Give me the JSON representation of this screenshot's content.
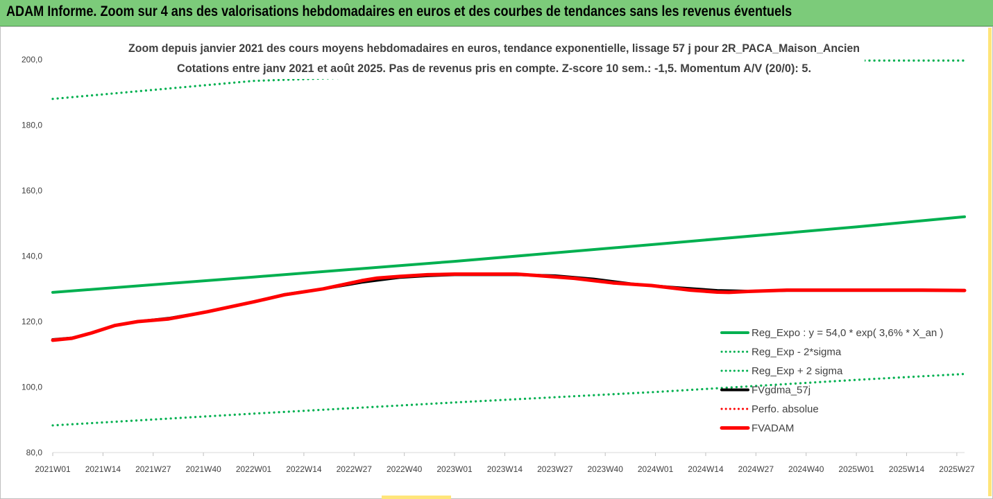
{
  "header": {
    "banner": "ADAM Informe. Zoom sur 4 ans des valorisations hebdomadaires en euros et des courbes de tendances sans les revenus éventuels"
  },
  "chart_data": {
    "type": "line",
    "title": "Zoom depuis janvier 2021 des cours moyens hebdomadaires en euros, tendance exponentielle, lissage 57 j pour 2R_PACA_Maison_Ancien",
    "subtitle": "Cotations entre janv 2021 et août 2025.  Pas de revenus pris en compte. Z-score 10 sem.: -1,5. Momentum A/V (20/0): 5.",
    "xlabel": "",
    "ylabel": "",
    "ylim": [
      80,
      200
    ],
    "yticks": [
      "80,0",
      "100,0",
      "120,0",
      "140,0",
      "160,0",
      "180,0",
      "200,0"
    ],
    "xticks": [
      "2021W01",
      "2021W14",
      "2021W27",
      "2021W40",
      "2022W01",
      "2022W14",
      "2022W27",
      "2022W40",
      "2023W01",
      "2023W14",
      "2023W27",
      "2023W40",
      "2024W01",
      "2024W14",
      "2024W27",
      "2024W40",
      "2025W01",
      "2025W14",
      "2025W27"
    ],
    "x_range_weeks": [
      0,
      236
    ],
    "grid": false,
    "legend_position": "bottom-right",
    "series": [
      {
        "name": "Reg_Expo : y = 54,0 * exp( 3,6% *  X_an )",
        "color": "#00b050",
        "style": "solid",
        "points": [
          [
            0,
            128.9
          ],
          [
            52,
            133.6
          ],
          [
            104,
            138.4
          ],
          [
            156,
            143.6
          ],
          [
            208,
            148.9
          ],
          [
            236,
            152.0
          ]
        ]
      },
      {
        "name": "Reg_Exp - 2*sigma",
        "color": "#00b050",
        "style": "dotted",
        "points": [
          [
            0,
            88.3
          ],
          [
            52,
            91.9
          ],
          [
            104,
            95.3
          ],
          [
            156,
            98.5
          ],
          [
            208,
            102.2
          ],
          [
            236,
            104.0
          ]
        ]
      },
      {
        "name": "Reg_Exp + 2 sigma",
        "color": "#00b050",
        "style": "dotted",
        "points": [
          [
            0,
            188.0
          ],
          [
            52,
            193.5
          ],
          [
            208,
            199.7
          ],
          [
            236,
            199.7
          ]
        ]
      },
      {
        "name": "FVgdma_57j",
        "color": "#000000",
        "style": "solid",
        "points": [
          [
            0,
            114.5
          ],
          [
            5,
            115.0
          ],
          [
            10,
            116.5
          ],
          [
            16,
            118.8
          ],
          [
            22,
            120.0
          ],
          [
            30,
            121.0
          ],
          [
            40,
            123.0
          ],
          [
            52,
            126.0
          ],
          [
            60,
            128.3
          ],
          [
            70,
            130.0
          ],
          [
            80,
            132.0
          ],
          [
            90,
            133.5
          ],
          [
            97,
            134.0
          ],
          [
            104,
            134.3
          ],
          [
            120,
            134.3
          ],
          [
            130,
            134.0
          ],
          [
            140,
            133.0
          ],
          [
            150,
            131.5
          ],
          [
            160,
            130.5
          ],
          [
            172,
            129.5
          ],
          [
            180,
            129.3
          ],
          [
            190,
            129.5
          ],
          [
            236,
            129.5
          ]
        ]
      },
      {
        "name": "Perfo. absolue",
        "color": "#ff0000",
        "style": "dotted",
        "points": []
      },
      {
        "name": "FVADAM",
        "color": "#ff0000",
        "style": "solid",
        "points": [
          [
            0,
            114.3
          ],
          [
            5,
            114.9
          ],
          [
            10,
            116.5
          ],
          [
            16,
            118.8
          ],
          [
            22,
            120.0
          ],
          [
            30,
            120.8
          ],
          [
            40,
            123.0
          ],
          [
            52,
            126.0
          ],
          [
            60,
            128.2
          ],
          [
            70,
            130.0
          ],
          [
            80,
            132.5
          ],
          [
            84,
            133.3
          ],
          [
            90,
            133.8
          ],
          [
            97,
            134.3
          ],
          [
            104,
            134.5
          ],
          [
            120,
            134.5
          ],
          [
            125,
            134.1
          ],
          [
            135,
            133.2
          ],
          [
            145,
            131.8
          ],
          [
            155,
            131.0
          ],
          [
            165,
            129.6
          ],
          [
            172,
            129.0
          ],
          [
            175,
            128.9
          ],
          [
            180,
            129.2
          ],
          [
            190,
            129.6
          ],
          [
            200,
            129.6
          ],
          [
            225,
            129.6
          ],
          [
            236,
            129.5
          ]
        ]
      }
    ]
  },
  "colors": {
    "banner_bg": "#7ccb7a",
    "trend_green": "#00b050",
    "fvadam_red": "#ff0000",
    "fvgdma_black": "#000000"
  }
}
